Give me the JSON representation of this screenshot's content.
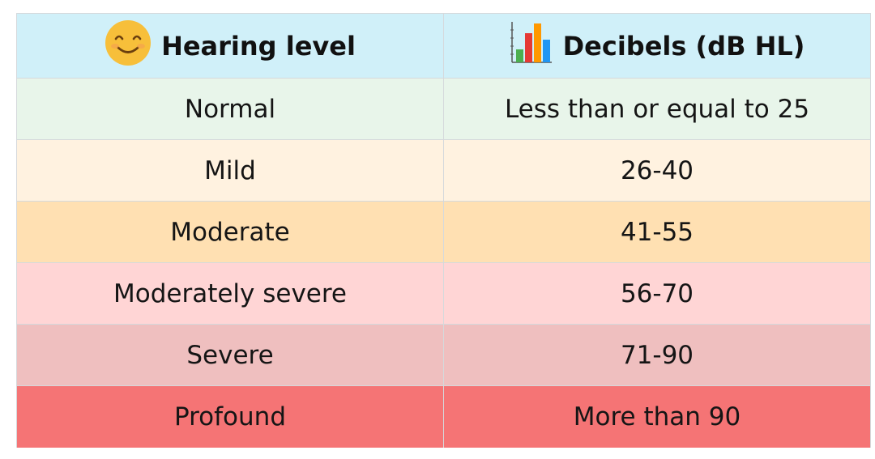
{
  "chart_data": {
    "type": "table",
    "columns": [
      {
        "label": "Hearing level",
        "icon": "smiling-face-icon"
      },
      {
        "label": "Decibels (dB HL)",
        "icon": "bar-chart-icon"
      }
    ],
    "rows": [
      {
        "level": "Normal",
        "decibels": "Less than or equal to 25",
        "color": "#e8f5ea"
      },
      {
        "level": "Mild",
        "decibels": "26-40",
        "color": "#fff2e0"
      },
      {
        "level": "Moderate",
        "decibels": "41-55",
        "color": "#ffe0b2"
      },
      {
        "level": "Moderately severe",
        "decibels": "56-70",
        "color": "#ffd5d5"
      },
      {
        "level": "Severe",
        "decibels": "71-90",
        "color": "#efbfbf"
      },
      {
        "level": "Profound",
        "decibels": "More than 90",
        "color": "#f57475"
      }
    ],
    "header_color": "#d0f0f9"
  }
}
